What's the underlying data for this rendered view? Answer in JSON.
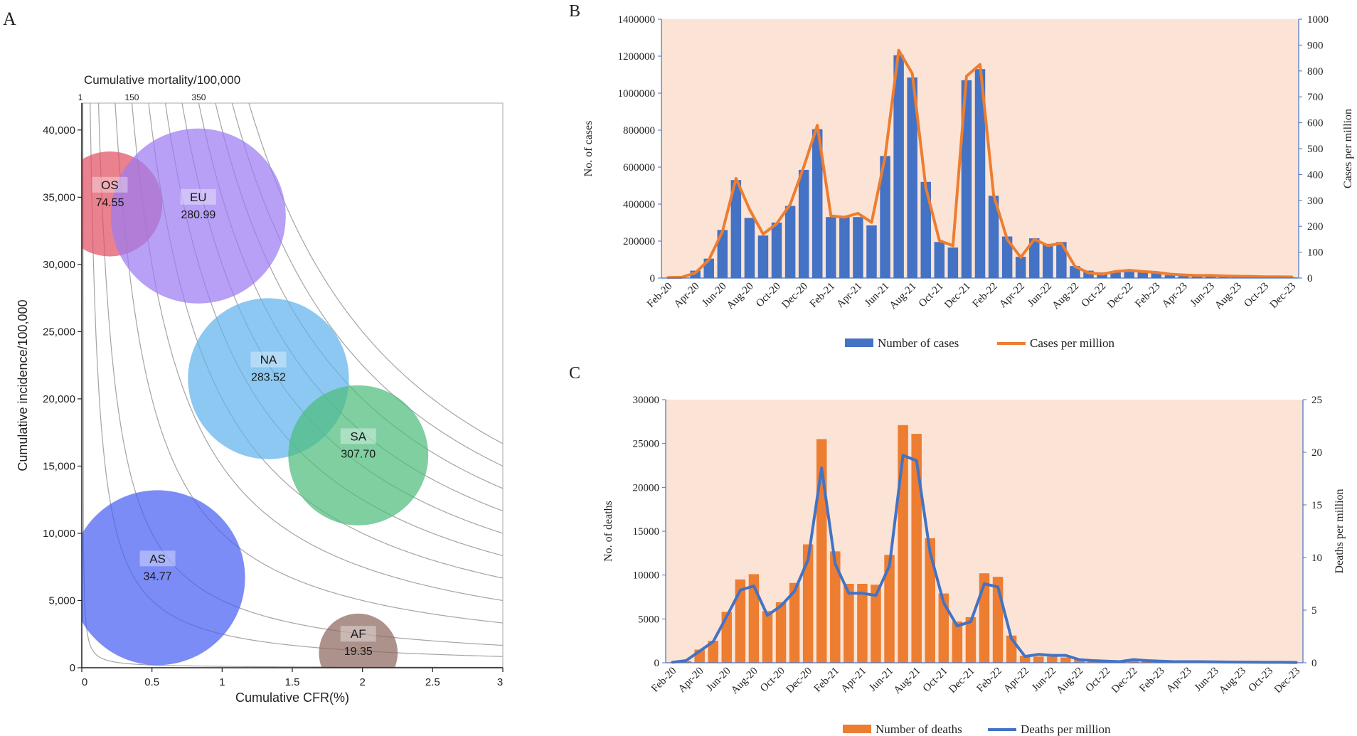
{
  "panels": {
    "a_label": "A",
    "b_label": "B",
    "c_label": "C"
  },
  "chart_data": [
    {
      "id": "panel-a",
      "type": "scatter",
      "subtype": "bubble",
      "title": "",
      "xlabel": "Cumulative CFR(%)",
      "ylabel": "Cumulative incidence/100,000",
      "top_axis_label": "Cumulative mortality/100,000",
      "top_axis_ticks": [
        "1",
        "150",
        "350"
      ],
      "xlim": [
        0,
        3
      ],
      "ylim": [
        0,
        42000
      ],
      "x_ticks": [
        0,
        0.5,
        1,
        1.5,
        2,
        2.5,
        3
      ],
      "x_tick_labels": [
        "0",
        "0.5",
        "1",
        "1.5",
        "2",
        "2.5",
        "3"
      ],
      "y_ticks": [
        0,
        5000,
        10000,
        15000,
        20000,
        25000,
        30000,
        35000,
        40000
      ],
      "y_tick_labels": [
        "0",
        "5,000",
        "10,000",
        "15,000",
        "20,000",
        "25,000",
        "30,000",
        "35,000",
        "40,000"
      ],
      "iso_mortality_levels": [
        1,
        25,
        50,
        100,
        150,
        200,
        250,
        300,
        350,
        400,
        450,
        500
      ],
      "bubbles": [
        {
          "code": "OS",
          "value_label": "74.55",
          "x": 0.2,
          "y": 34500,
          "size": 0.6,
          "color": "#e05263"
        },
        {
          "code": "EU",
          "value_label": "280.99",
          "x": 0.83,
          "y": 33600,
          "size": 1.0,
          "color": "#9b7cf2"
        },
        {
          "code": "NA",
          "value_label": "283.52",
          "x": 1.33,
          "y": 21500,
          "size": 0.92,
          "color": "#5fb3ec"
        },
        {
          "code": "SA",
          "value_label": "307.70",
          "x": 1.97,
          "y": 15800,
          "size": 0.8,
          "color": "#4ebd7d"
        },
        {
          "code": "AS",
          "value_label": "34.77",
          "x": 0.54,
          "y": 6700,
          "size": 1.0,
          "color": "#4a60f2"
        },
        {
          "code": "AF",
          "value_label": "19.35",
          "x": 1.97,
          "y": 1100,
          "size": 0.45,
          "color": "#8d6860"
        }
      ]
    },
    {
      "id": "panel-b",
      "type": "bar",
      "combo_line": true,
      "title": "",
      "xlabel": "",
      "ylabel": "No. of cases",
      "y2label": "Cases per million",
      "ylim": [
        0,
        1400000
      ],
      "y2lim": [
        0,
        1000
      ],
      "y_ticks": [
        "0",
        "200000",
        "400000",
        "600000",
        "800000",
        "1000000",
        "1200000",
        "1400000"
      ],
      "y2_ticks": [
        "0",
        "100",
        "200",
        "300",
        "400",
        "500",
        "600",
        "700",
        "800",
        "900",
        "1000"
      ],
      "x_tick_labels": [
        "Feb-20",
        "Apr-20",
        "Jun-20",
        "Aug-20",
        "Oct-20",
        "Dec-20",
        "Feb-21",
        "Apr-21",
        "Jun-21",
        "Aug-21",
        "Oct-21",
        "Dec-21",
        "Feb-22",
        "Apr-22",
        "Jun-22",
        "Aug-22",
        "Oct-22",
        "Dec-22",
        "Feb-23",
        "Apr-23",
        "Jun-23",
        "Aug-23",
        "Oct-23",
        "Dec-23"
      ],
      "categories": [
        "Feb-20",
        "Mar-20",
        "Apr-20",
        "May-20",
        "Jun-20",
        "Jul-20",
        "Aug-20",
        "Sep-20",
        "Oct-20",
        "Nov-20",
        "Dec-20",
        "Jan-21",
        "Feb-21",
        "Mar-21",
        "Apr-21",
        "May-21",
        "Jun-21",
        "Jul-21",
        "Aug-21",
        "Sep-21",
        "Oct-21",
        "Nov-21",
        "Dec-21",
        "Jan-22",
        "Feb-22",
        "Mar-22",
        "Apr-22",
        "May-22",
        "Jun-22",
        "Jul-22",
        "Aug-22",
        "Sep-22",
        "Oct-22",
        "Nov-22",
        "Dec-22",
        "Jan-23",
        "Feb-23",
        "Mar-23",
        "Apr-23",
        "May-23",
        "Jun-23",
        "Jul-23",
        "Aug-23",
        "Sep-23",
        "Oct-23",
        "Nov-23",
        "Dec-23"
      ],
      "series": [
        {
          "name": "Number of cases",
          "kind": "bar",
          "axis": "left",
          "color": "#4472c4",
          "values": [
            1000,
            2000,
            40000,
            105000,
            260000,
            530000,
            325000,
            230000,
            300000,
            390000,
            585000,
            805000,
            330000,
            330000,
            330000,
            285000,
            660000,
            1205000,
            1085000,
            520000,
            195000,
            165000,
            1070000,
            1130000,
            445000,
            225000,
            115000,
            215000,
            185000,
            195000,
            65000,
            40000,
            30000,
            30000,
            40000,
            30000,
            30000,
            15000,
            15000,
            10000,
            10000,
            5000,
            5000,
            5000,
            5000,
            3000,
            3000
          ]
        },
        {
          "name": "Cases per million",
          "kind": "line",
          "axis": "right",
          "color": "#ed7d31",
          "values": [
            2,
            3,
            20,
            70,
            180,
            385,
            265,
            170,
            210,
            285,
            430,
            590,
            240,
            235,
            250,
            215,
            470,
            880,
            790,
            350,
            145,
            125,
            780,
            825,
            320,
            150,
            80,
            150,
            125,
            135,
            45,
            20,
            15,
            25,
            30,
            25,
            22,
            15,
            12,
            10,
            10,
            8,
            7,
            6,
            5,
            5,
            4
          ]
        }
      ]
    },
    {
      "id": "panel-c",
      "type": "bar",
      "combo_line": true,
      "title": "",
      "xlabel": "",
      "ylabel": "No. of deaths",
      "y2label": "Deaths per million",
      "ylim": [
        0,
        30000
      ],
      "y2lim": [
        0,
        25
      ],
      "y_ticks": [
        "0",
        "5000",
        "10000",
        "15000",
        "20000",
        "25000",
        "30000"
      ],
      "y2_ticks": [
        "0",
        "5",
        "10",
        "15",
        "20",
        "25"
      ],
      "x_tick_labels": [
        "Feb-20",
        "Apr-20",
        "Jun-20",
        "Aug-20",
        "Oct-20",
        "Dec-20",
        "Feb-21",
        "Apr-21",
        "Jun-21",
        "Aug-21",
        "Oct-21",
        "Dec-21",
        "Feb-22",
        "Apr-22",
        "Jun-22",
        "Aug-22",
        "Oct-22",
        "Dec-22",
        "Feb-23",
        "Apr-23",
        "Jun-23",
        "Aug-23",
        "Oct-23",
        "Dec-23"
      ],
      "categories": [
        "Feb-20",
        "Mar-20",
        "Apr-20",
        "May-20",
        "Jun-20",
        "Jul-20",
        "Aug-20",
        "Sep-20",
        "Oct-20",
        "Nov-20",
        "Dec-20",
        "Jan-21",
        "Feb-21",
        "Mar-21",
        "Apr-21",
        "May-21",
        "Jun-21",
        "Jul-21",
        "Aug-21",
        "Sep-21",
        "Oct-21",
        "Nov-21",
        "Dec-21",
        "Jan-22",
        "Feb-22",
        "Mar-22",
        "Apr-22",
        "May-22",
        "Jun-22",
        "Jul-22",
        "Aug-22",
        "Sep-22",
        "Oct-22",
        "Nov-22",
        "Dec-22",
        "Jan-23",
        "Feb-23",
        "Mar-23",
        "Apr-23",
        "May-23",
        "Jun-23",
        "Jul-23",
        "Aug-23",
        "Sep-23",
        "Oct-23",
        "Nov-23",
        "Dec-23"
      ],
      "series": [
        {
          "name": "Number of deaths",
          "kind": "bar",
          "axis": "left",
          "color": "#ed7d31",
          "values": [
            50,
            200,
            1500,
            2500,
            5800,
            9500,
            10100,
            5900,
            6900,
            9100,
            13500,
            25500,
            12700,
            9000,
            9000,
            8900,
            12300,
            27100,
            26100,
            14200,
            7900,
            4700,
            5200,
            10200,
            9800,
            3100,
            800,
            700,
            700,
            600,
            400,
            300,
            200,
            150,
            300,
            200,
            150,
            100,
            100,
            80,
            70,
            60,
            50,
            50,
            40,
            40,
            30
          ]
        },
        {
          "name": "Deaths per million",
          "kind": "line",
          "axis": "right",
          "color": "#4472c4",
          "values": [
            0.05,
            0.2,
            1.1,
            2.0,
            4.4,
            6.9,
            7.3,
            4.5,
            5.4,
            6.8,
            9.8,
            18.5,
            9.4,
            6.6,
            6.6,
            6.4,
            9.2,
            19.7,
            19.2,
            10.5,
            5.7,
            3.5,
            3.9,
            7.5,
            7.2,
            2.3,
            0.6,
            0.8,
            0.7,
            0.7,
            0.3,
            0.2,
            0.15,
            0.1,
            0.3,
            0.2,
            0.15,
            0.1,
            0.1,
            0.1,
            0.08,
            0.07,
            0.06,
            0.05,
            0.04,
            0.04,
            0.03
          ]
        }
      ]
    }
  ]
}
